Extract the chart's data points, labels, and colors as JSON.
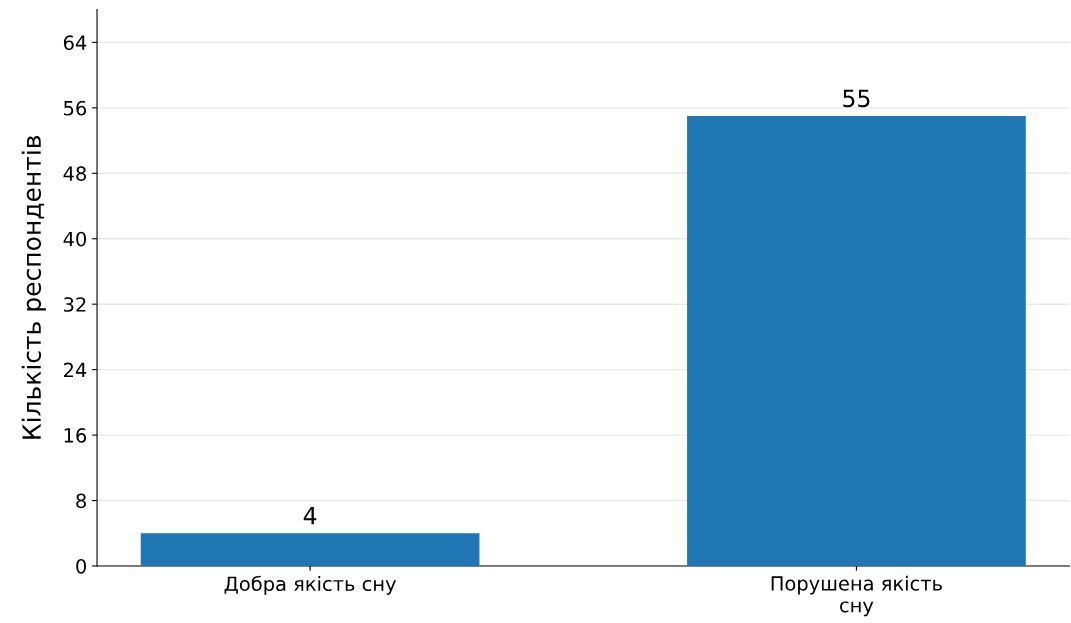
{
  "chart_data": {
    "type": "bar",
    "ylabel": "Кількість респондентів",
    "categories": [
      "Добра якість сну",
      "Порушена якість\nсну"
    ],
    "values": [
      4,
      55
    ],
    "color": "#1f77b4",
    "ylim": [
      0,
      68
    ],
    "yticks": [
      0,
      8,
      16,
      24,
      32,
      40,
      48,
      56,
      64
    ],
    "grid": "y",
    "data_labels": true
  }
}
